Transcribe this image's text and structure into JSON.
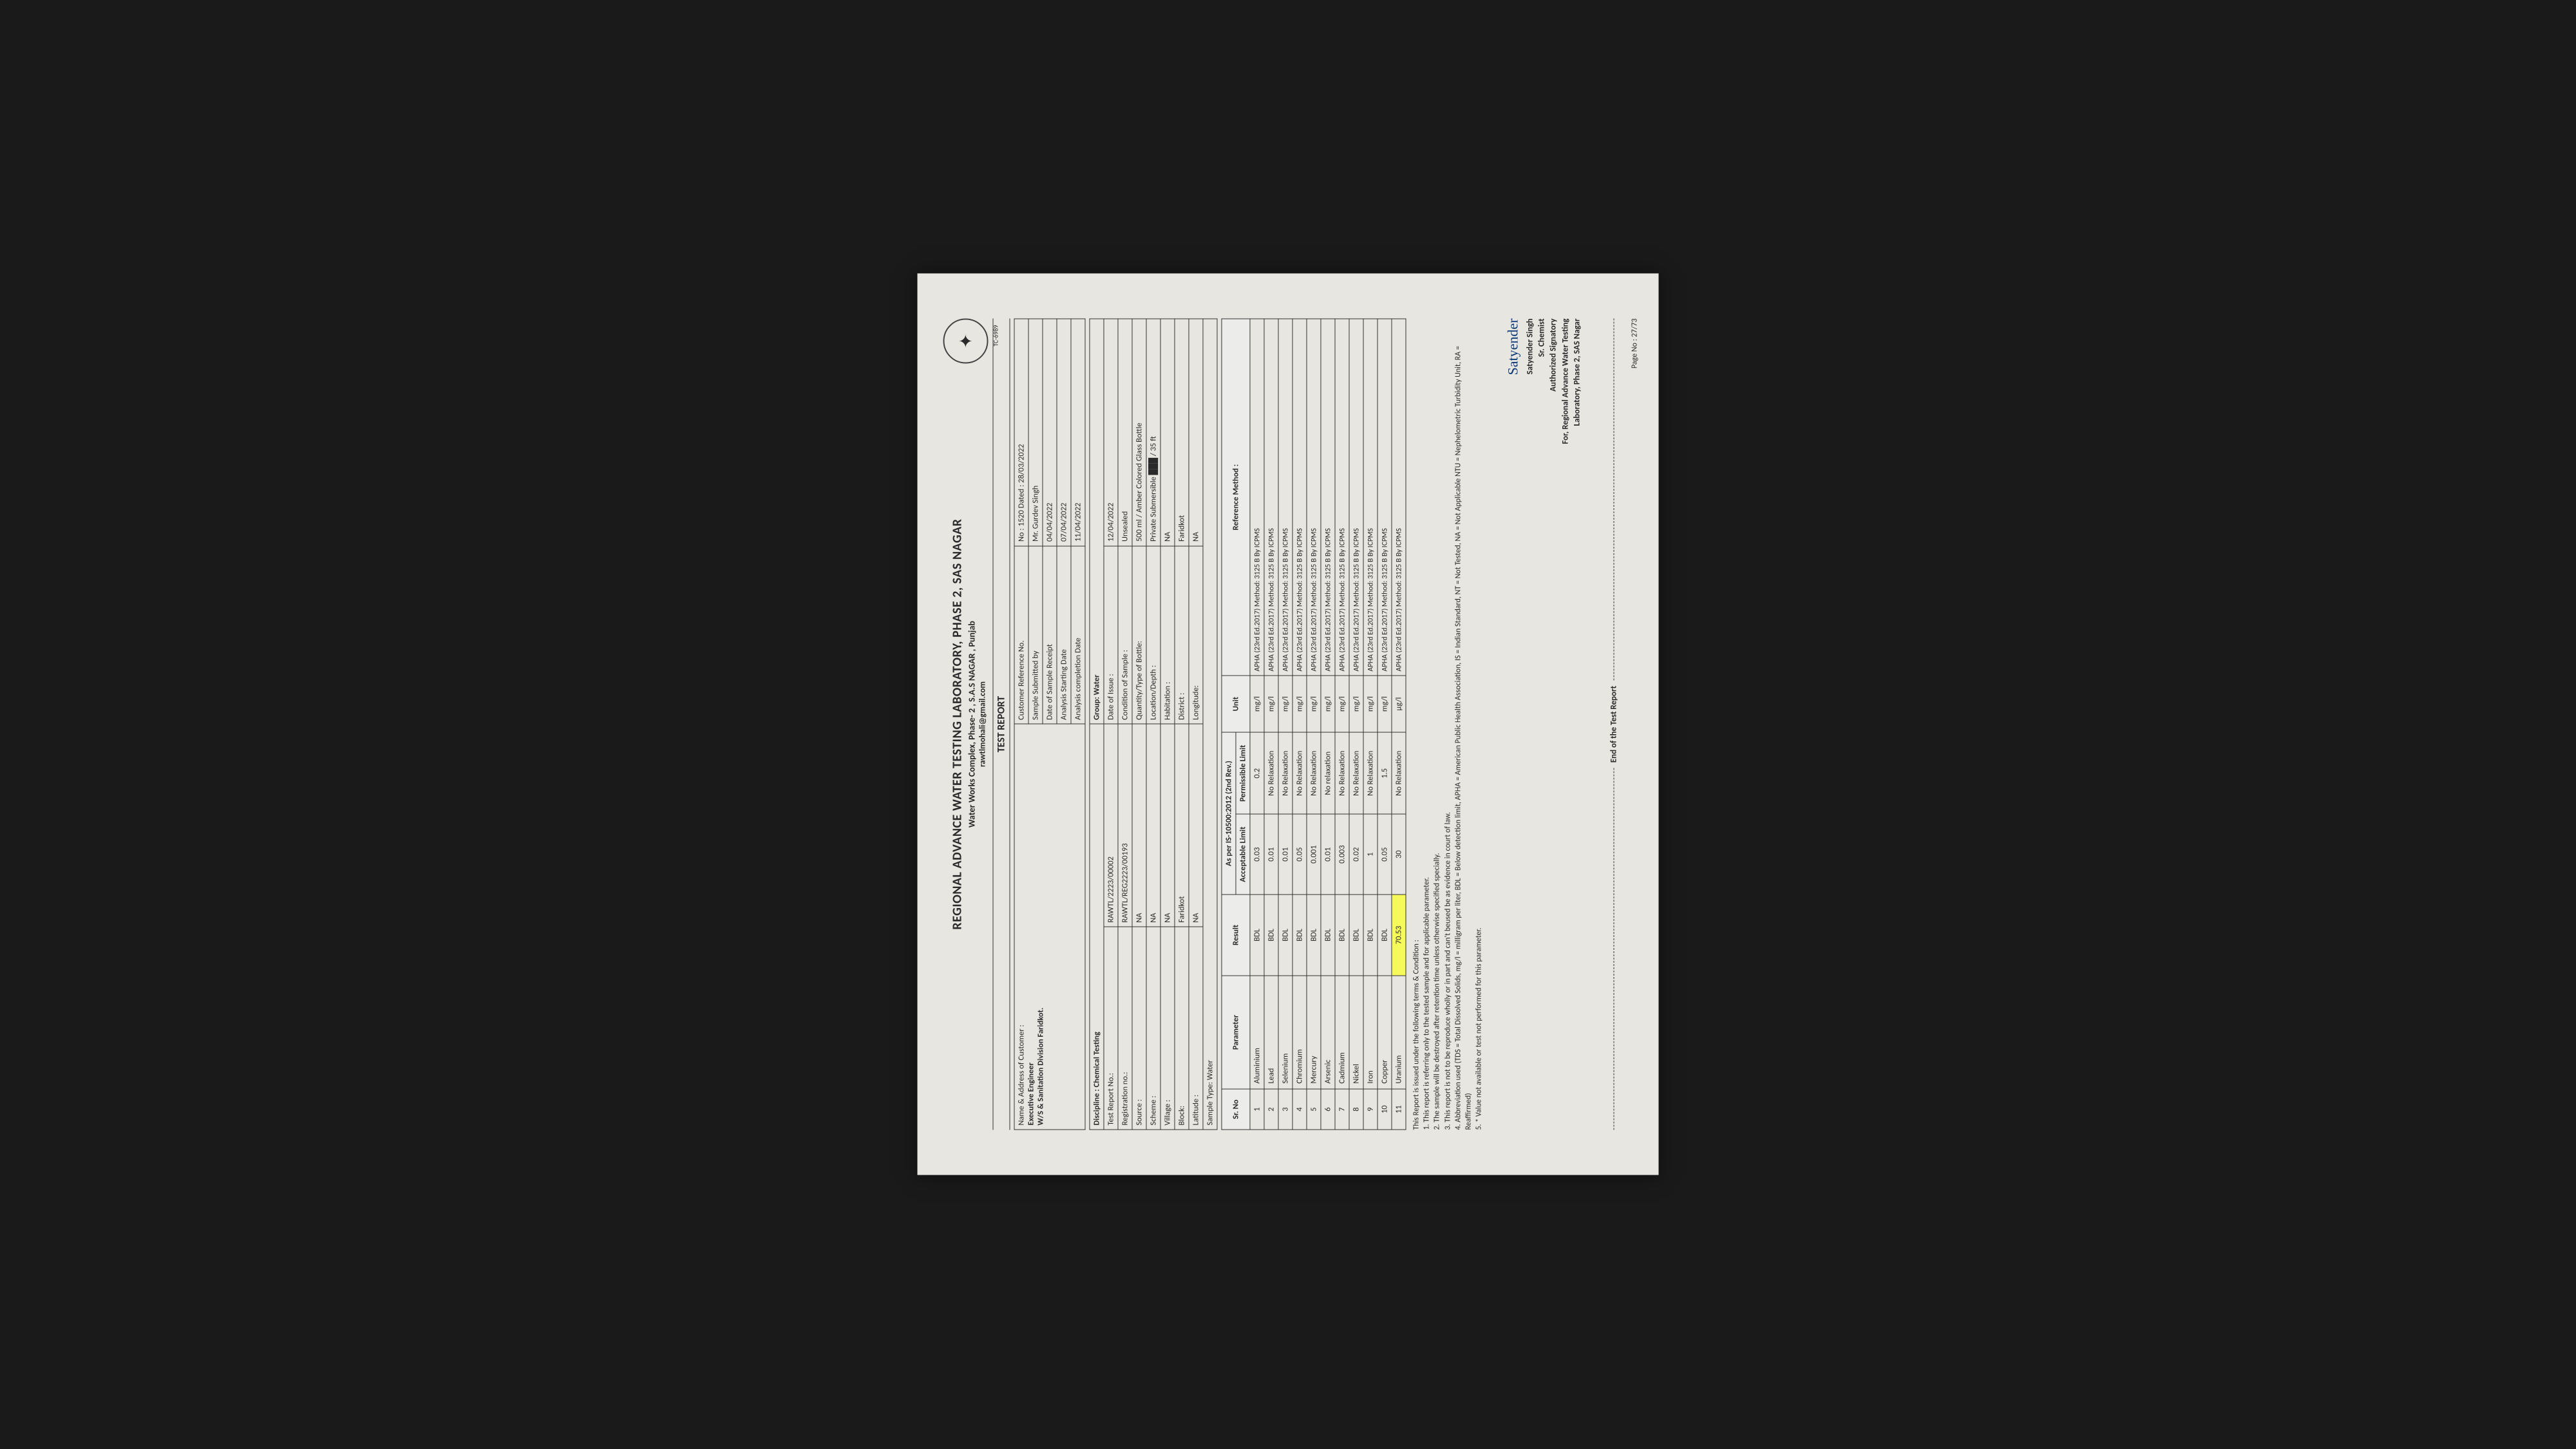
{
  "header": {
    "title": "REGIONAL ADVANCE WATER TESTING LABORATORY, PHASE 2, SAS NAGAR",
    "subtitle": "Water Works Complex, Phase- 2 , S.A.S NAGAR , Punjab",
    "email": "rawtlmohali@gmail.com",
    "tc": "TC-6989",
    "report_title": "TEST REPORT"
  },
  "customer": {
    "label": "Name & Address of Customer :",
    "line1": "Executive Engineer",
    "line2": "W/S & Sanitation Division Faridkot.",
    "ref_label": "Customer Reference No.",
    "ref_val": "No : 1520 Dated : 28/03/2022",
    "subm_label": "Sample Submitted by",
    "subm_val": "Mr. Gurdev Singh",
    "recpt_label": "Date of Sample Receipt",
    "recpt_val": "04/04/2022",
    "start_label": "Analysis Starting Date",
    "start_val": "07/04/2022",
    "comp_label": "Analysis completion Date",
    "comp_val": "11/04/2022"
  },
  "meta": {
    "discipline_label": "Discipline : Chemical Testing",
    "group_label": "Group: Water",
    "rows": [
      [
        "Test Report No.:",
        "RAWTL/2223/00002",
        "Date of Issue :",
        "12/04/2022"
      ],
      [
        "Registration no.:",
        "RAWTL/REG2223/00193",
        "Condition of Sample :",
        "Unsealed"
      ],
      [
        "Source :",
        "NA",
        "Quantity/Type of Bottle:",
        "500 ml / Amber Colored Glass Bottle"
      ],
      [
        "Scheme :",
        "NA",
        "Location/Depth :",
        "Private Submersible ███ / 35 ft"
      ],
      [
        "Village :",
        "NA",
        "Habitation :",
        "NA"
      ],
      [
        "Block:",
        "Faridkot",
        "District :",
        "Faridkot"
      ],
      [
        "Latitude :",
        "NA",
        "Longitude:",
        "NA"
      ],
      [
        "Sample Type: Water",
        "",
        "",
        ""
      ]
    ]
  },
  "results": {
    "std_header": "As per IS-10500:2012 (2nd Rev.)",
    "cols": [
      "Sr. No",
      "Parameter",
      "Result",
      "Acceptable Limit",
      "Permissible Limit",
      "Unit",
      "Reference Method :"
    ],
    "method_prefix": "APHA (23rd Ed.2017) Method: 3125 B",
    "method_suffix": "By ICPMS",
    "rows": [
      {
        "n": "1",
        "param": "Aluminium",
        "res": "BDL",
        "acc": "0.03",
        "perm": "0.2",
        "unit": "mg/l"
      },
      {
        "n": "2",
        "param": "Lead",
        "res": "BDL",
        "acc": "0.01",
        "perm": "No Relaxation",
        "unit": "mg/l"
      },
      {
        "n": "3",
        "param": "Selenium",
        "res": "BDL",
        "acc": "0.01",
        "perm": "No Relaxation",
        "unit": "mg/l"
      },
      {
        "n": "4",
        "param": "Chromium",
        "res": "BDL",
        "acc": "0.05",
        "perm": "No Relaxation",
        "unit": "mg/l"
      },
      {
        "n": "5",
        "param": "Mercury",
        "res": "BDL",
        "acc": "0.001",
        "perm": "No Relaxation",
        "unit": "mg/l"
      },
      {
        "n": "6",
        "param": "Arsenic",
        "res": "BDL",
        "acc": "0.01",
        "perm": "No relaxation",
        "unit": "mg/l"
      },
      {
        "n": "7",
        "param": "Cadmium",
        "res": "BDL",
        "acc": "0.003",
        "perm": "No Relaxation",
        "unit": "mg/l"
      },
      {
        "n": "8",
        "param": "Nickel",
        "res": "BDL",
        "acc": "0.02",
        "perm": "No Relaxation",
        "unit": "mg/l"
      },
      {
        "n": "9",
        "param": "Iron",
        "res": "BDL",
        "acc": "1",
        "perm": "No Relaxation",
        "unit": "mg/l"
      },
      {
        "n": "10",
        "param": "Copper",
        "res": "BDL",
        "acc": "0.05",
        "perm": "1.5",
        "unit": "mg/l"
      },
      {
        "n": "11",
        "param": "Uranium",
        "res": "70.53",
        "acc": "30",
        "perm": "No Relaxation",
        "unit": "µg/l",
        "hl": true
      }
    ]
  },
  "terms": {
    "heading": "This Report is issued under the following terms & Condition :",
    "lines": [
      "1. This report is referring only to the tested sample and for applicable parameter.",
      "2. The sample will be destroyed after retention time unless otherwise specified specially.",
      "3. This report is not to be reproduce wholly or in part and can't beused be as evidence in court of law.",
      "4. Abbreviation used (TDS = Total Dissolved Solids, mg/l = milligram per liter, BDL = Below detection limit, APHA = American Public Health Association, IS = Indian Standard, NT = Not Tested, NA = Not Applicable NTU = Nephelometric Turbidity Unit, RA = Reaffirmed)",
      "5. * Value not available or test not performed for this parameter."
    ]
  },
  "signatory": {
    "sig": "Satyender",
    "name": "Satyender Singh",
    "role": "Sr. Chemist",
    "auth": "Authorized Signatory",
    "for": "For, Regional Advance Water Testing",
    "lab": "Laboratory, Phase 2, SAS Nagar"
  },
  "footer": {
    "end": "End of the Test Report",
    "page": "Page No : 27/73"
  }
}
